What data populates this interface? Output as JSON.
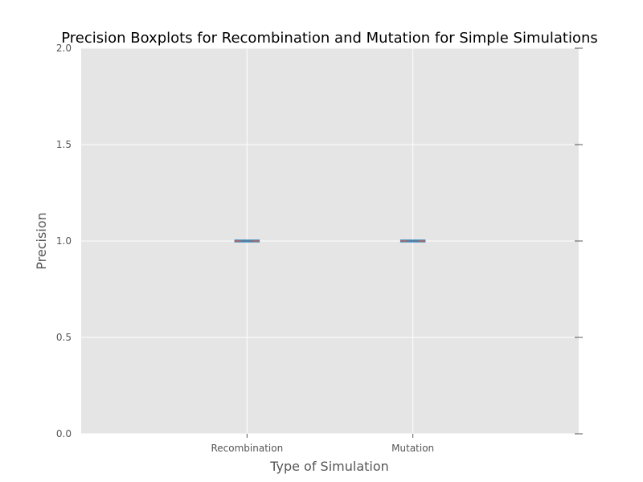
{
  "chart_data": {
    "type": "boxplot",
    "title": "Precision Boxplots for Recombination and Mutation for Simple Simulations",
    "xlabel": "Type of Simulation",
    "ylabel": "Precision",
    "categories": [
      "Recombination",
      "Mutation"
    ],
    "ylim": [
      0.0,
      2.0
    ],
    "yticks": [
      0.0,
      0.5,
      1.0,
      1.5,
      2.0
    ],
    "ytick_labels": [
      "0.0",
      "0.5",
      "1.0",
      "1.5",
      "2.0"
    ],
    "boxes": [
      {
        "category": "Recombination",
        "min": 1.0,
        "q1": 1.0,
        "median": 1.0,
        "q3": 1.0,
        "max": 1.0
      },
      {
        "category": "Mutation",
        "min": 1.0,
        "q1": 1.0,
        "median": 1.0,
        "q3": 1.0,
        "max": 1.0
      }
    ],
    "grid": true,
    "colors": {
      "background": "#e5e5e5",
      "grid": "#ffffff",
      "box": "#348abd",
      "median": "#e24a33"
    }
  }
}
